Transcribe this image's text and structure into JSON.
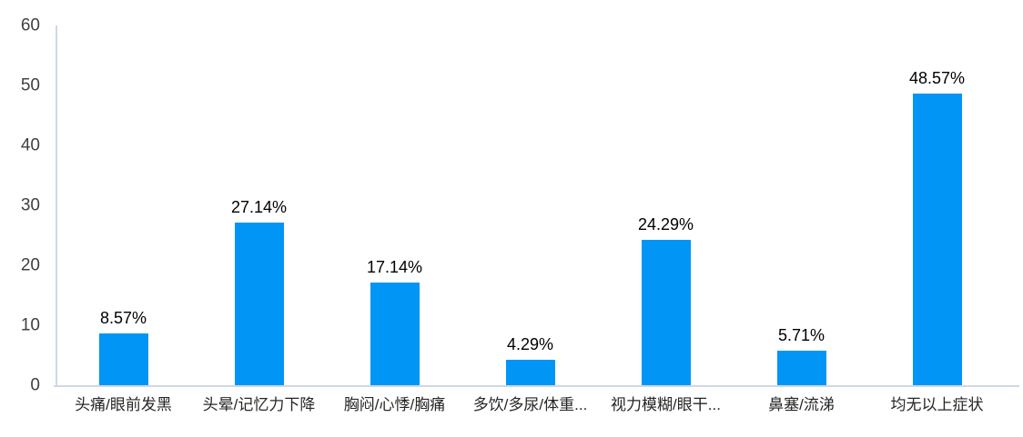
{
  "chart_data": {
    "type": "bar",
    "categories": [
      "头痛/眼前发黑",
      "头晕/记忆力下降",
      "胸闷/心悸/胸痛",
      "多饮/多尿/体重...",
      "视力模糊/眼干...",
      "鼻塞/流涕",
      "均无以上症状"
    ],
    "values": [
      8.57,
      27.14,
      17.14,
      4.29,
      24.29,
      5.71,
      48.57
    ],
    "value_labels": [
      "8.57%",
      "27.14%",
      "17.14%",
      "4.29%",
      "24.29%",
      "5.71%",
      "48.57%"
    ],
    "title": "",
    "xlabel": "",
    "ylabel": "",
    "ylim": [
      0,
      60
    ],
    "yticks": [
      0,
      10,
      20,
      30,
      40,
      50,
      60
    ],
    "grid": false,
    "legend": "none",
    "colors": {
      "bar": "#0195F6",
      "axis_line": "#CFD7E8",
      "tick_label": "#404040",
      "value_label": "#000000",
      "category_label": "#262626",
      "background": "#FFFFFF"
    }
  }
}
